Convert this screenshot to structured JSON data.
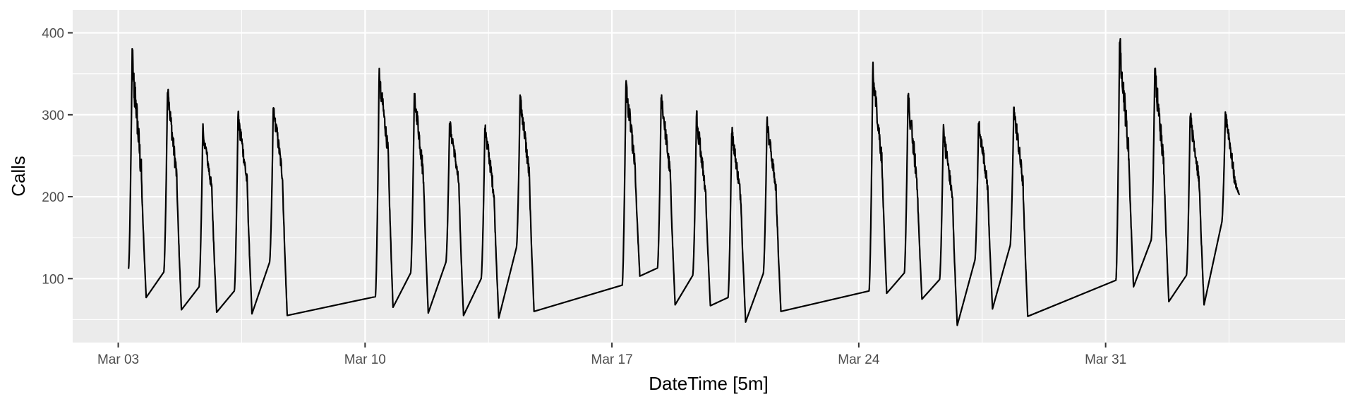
{
  "chart_data": {
    "type": "line",
    "title": "",
    "xlabel": "DateTime [5m]",
    "ylabel": "Calls",
    "ylim": [
      22,
      428
    ],
    "xlim": [
      "2003-03-01T17:00",
      "2003-04-06T19:00"
    ],
    "yticks": [
      100,
      200,
      300,
      400
    ],
    "xticks": [
      {
        "t": "2003-03-03T00:00",
        "label": "Mar 03"
      },
      {
        "t": "2003-03-10T00:00",
        "label": "Mar 10"
      },
      {
        "t": "2003-03-17T00:00",
        "label": "Mar 17"
      },
      {
        "t": "2003-03-24T00:00",
        "label": "Mar 24"
      },
      {
        "t": "2003-03-31T00:00",
        "label": "Mar 31"
      }
    ],
    "grid": true,
    "background": "#ebebeb",
    "grid_color": "#ffffff",
    "line_color": "#000000",
    "series": [
      {
        "days": [
          {
            "date": "2003-03-03",
            "open": 112,
            "peak": 398,
            "mid": 250,
            "close": 77
          },
          {
            "date": "2003-03-04",
            "open": 108,
            "peak": 341,
            "mid": 250,
            "close": 62
          },
          {
            "date": "2003-03-05",
            "open": 90,
            "peak": 290,
            "mid": 230,
            "close": 59
          },
          {
            "date": "2003-03-06",
            "open": 85,
            "peak": 310,
            "mid": 240,
            "close": 57
          },
          {
            "date": "2003-03-07",
            "open": 120,
            "peak": 320,
            "mid": 250,
            "close": 55
          },
          {
            "date": "2003-03-10",
            "open": 78,
            "peak": 360,
            "mid": 280,
            "close": 65
          },
          {
            "date": "2003-03-11",
            "open": 107,
            "peak": 340,
            "mid": 250,
            "close": 58
          },
          {
            "date": "2003-03-12",
            "open": 120,
            "peak": 300,
            "mid": 240,
            "close": 55
          },
          {
            "date": "2003-03-13",
            "open": 100,
            "peak": 295,
            "mid": 225,
            "close": 52
          },
          {
            "date": "2003-03-14",
            "open": 138,
            "peak": 336,
            "mid": 250,
            "close": 60
          },
          {
            "date": "2003-03-17",
            "open": 92,
            "peak": 352,
            "mid": 260,
            "close": 103
          },
          {
            "date": "2003-03-18",
            "open": 113,
            "peak": 334,
            "mid": 250,
            "close": 68
          },
          {
            "date": "2003-03-19",
            "open": 104,
            "peak": 310,
            "mid": 230,
            "close": 67
          },
          {
            "date": "2003-03-20",
            "open": 77,
            "peak": 290,
            "mid": 220,
            "close": 47
          },
          {
            "date": "2003-03-21",
            "open": 106,
            "peak": 300,
            "mid": 230,
            "close": 60
          },
          {
            "date": "2003-03-24",
            "open": 85,
            "peak": 366,
            "mid": 270,
            "close": 82
          },
          {
            "date": "2003-03-25",
            "open": 107,
            "peak": 338,
            "mid": 240,
            "close": 75
          },
          {
            "date": "2003-03-26",
            "open": 99,
            "peak": 290,
            "mid": 220,
            "close": 43
          },
          {
            "date": "2003-03-27",
            "open": 122,
            "peak": 300,
            "mid": 235,
            "close": 63
          },
          {
            "date": "2003-03-28",
            "open": 140,
            "peak": 320,
            "mid": 240,
            "close": 54
          },
          {
            "date": "2003-03-31",
            "open": 98,
            "peak": 407,
            "mid": 280,
            "close": 90
          },
          {
            "date": "2003-04-01",
            "open": 147,
            "peak": 370,
            "mid": 260,
            "close": 72
          },
          {
            "date": "2003-04-02",
            "open": 104,
            "peak": 310,
            "mid": 240,
            "close": 68
          },
          {
            "date": "2003-04-03",
            "open": 168,
            "peak": 312,
            "mid": 245,
            "close": 202
          }
        ]
      }
    ]
  }
}
